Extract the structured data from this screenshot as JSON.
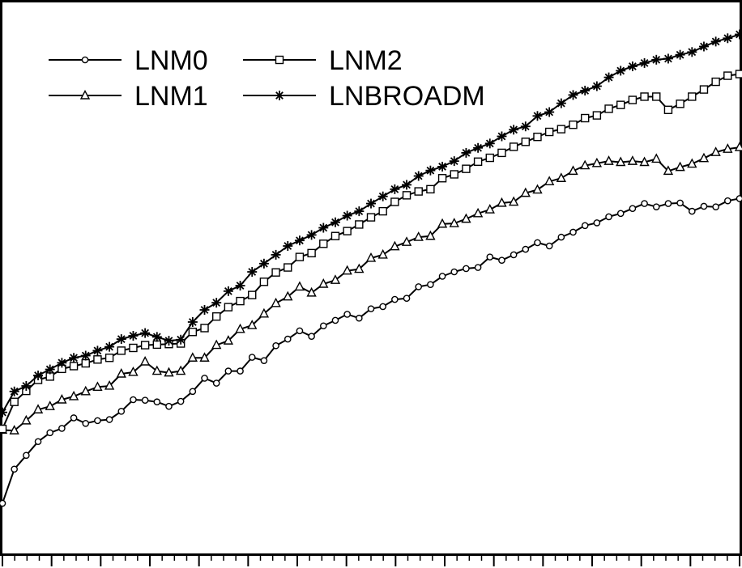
{
  "chart_data": {
    "type": "line",
    "title": "",
    "xlabel": "",
    "ylabel": "",
    "ylim": [
      0,
      100
    ],
    "grid": false,
    "legend_position": "top-left",
    "line_color": "#000000",
    "x": [
      0,
      1,
      2,
      3,
      4,
      5,
      6,
      7,
      8,
      9,
      10,
      11,
      12,
      13,
      14,
      15,
      16,
      17,
      18,
      19,
      20,
      21,
      22,
      23,
      24,
      25,
      26,
      27,
      28,
      29,
      30,
      31,
      32,
      33,
      34,
      35,
      36,
      37,
      38,
      39,
      40,
      41,
      42,
      43,
      44,
      45,
      46,
      47,
      48,
      49,
      50,
      51,
      52,
      53,
      54,
      55,
      56,
      57,
      58,
      59,
      60,
      61,
      62
    ],
    "series": [
      {
        "name": "LNM0",
        "marker": "circle",
        "values": [
          9.1,
          15.3,
          17.8,
          20.3,
          21.9,
          22.7,
          24.6,
          23.6,
          24.1,
          24.3,
          25.8,
          27.9,
          27.8,
          27.5,
          26.7,
          27.6,
          29.4,
          31.8,
          30.9,
          33.1,
          33.1,
          35.6,
          35.0,
          37.7,
          38.9,
          40.4,
          39.4,
          41.3,
          42.3,
          43.4,
          42.7,
          44.4,
          44.8,
          46.1,
          46.3,
          48.4,
          48.8,
          50.3,
          51.1,
          51.7,
          51.9,
          53.8,
          53.2,
          54.2,
          55.2,
          56.4,
          55.8,
          57.4,
          58.3,
          59.5,
          60.0,
          61.1,
          61.7,
          62.6,
          63.5,
          62.9,
          63.5,
          63.6,
          62.1,
          63.0,
          62.9,
          64.0,
          64.4
        ]
      },
      {
        "name": "LNM1",
        "marker": "triangle",
        "values": [
          22.4,
          22.3,
          24.1,
          26.1,
          26.7,
          27.9,
          28.5,
          29.4,
          30.2,
          30.4,
          32.6,
          32.9,
          34.8,
          33.1,
          32.8,
          33.1,
          35.5,
          35.5,
          37.8,
          38.6,
          40.7,
          41.4,
          43.5,
          45.4,
          46.6,
          48.4,
          47.3,
          48.9,
          49.6,
          51.3,
          51.6,
          53.6,
          54.2,
          55.7,
          56.5,
          57.4,
          57.6,
          59.8,
          59.9,
          60.7,
          61.7,
          62.4,
          63.6,
          63.8,
          65.4,
          66.0,
          67.5,
          68.1,
          69.4,
          70.4,
          70.8,
          71.2,
          71.0,
          71.2,
          71.0,
          71.6,
          69.4,
          70.1,
          70.7,
          71.7,
          72.8,
          73.4,
          73.7
        ]
      },
      {
        "name": "LNM2",
        "marker": "square",
        "values": [
          22.6,
          27.5,
          29.5,
          31.5,
          32.1,
          33.5,
          34.0,
          34.5,
          35.2,
          35.5,
          36.8,
          37.3,
          37.8,
          37.9,
          38.0,
          38.1,
          40.2,
          40.9,
          43.0,
          44.7,
          45.8,
          46.9,
          49.3,
          51.0,
          51.9,
          53.8,
          54.5,
          56.2,
          57.6,
          58.5,
          59.7,
          61.0,
          62.1,
          63.8,
          65.0,
          65.7,
          66.1,
          68.1,
          68.8,
          69.8,
          71.1,
          71.8,
          72.7,
          73.8,
          74.7,
          75.6,
          76.5,
          77.0,
          77.8,
          79.0,
          79.5,
          80.7,
          81.4,
          82.3,
          82.9,
          82.9,
          80.5,
          81.6,
          82.9,
          84.2,
          85.6,
          86.7,
          87.0
        ]
      },
      {
        "name": "LNBROADM",
        "marker": "asterisk",
        "values": [
          25.6,
          29.4,
          30.4,
          32.3,
          33.4,
          34.6,
          35.5,
          35.9,
          36.8,
          37.5,
          38.9,
          39.5,
          40.0,
          39.3,
          38.6,
          38.8,
          42.0,
          44.2,
          45.5,
          47.6,
          48.6,
          51.1,
          52.6,
          54.2,
          55.8,
          56.8,
          57.8,
          59.1,
          60.1,
          61.3,
          62.1,
          63.5,
          64.8,
          66.1,
          66.9,
          68.5,
          69.5,
          70.2,
          71.2,
          72.7,
          73.6,
          74.4,
          75.7,
          76.9,
          77.5,
          79.4,
          80.1,
          81.7,
          83.2,
          84.0,
          84.8,
          86.4,
          87.6,
          88.4,
          89.0,
          89.6,
          89.8,
          90.5,
          91.0,
          92.0,
          92.9,
          93.5,
          94.2
        ]
      }
    ]
  }
}
